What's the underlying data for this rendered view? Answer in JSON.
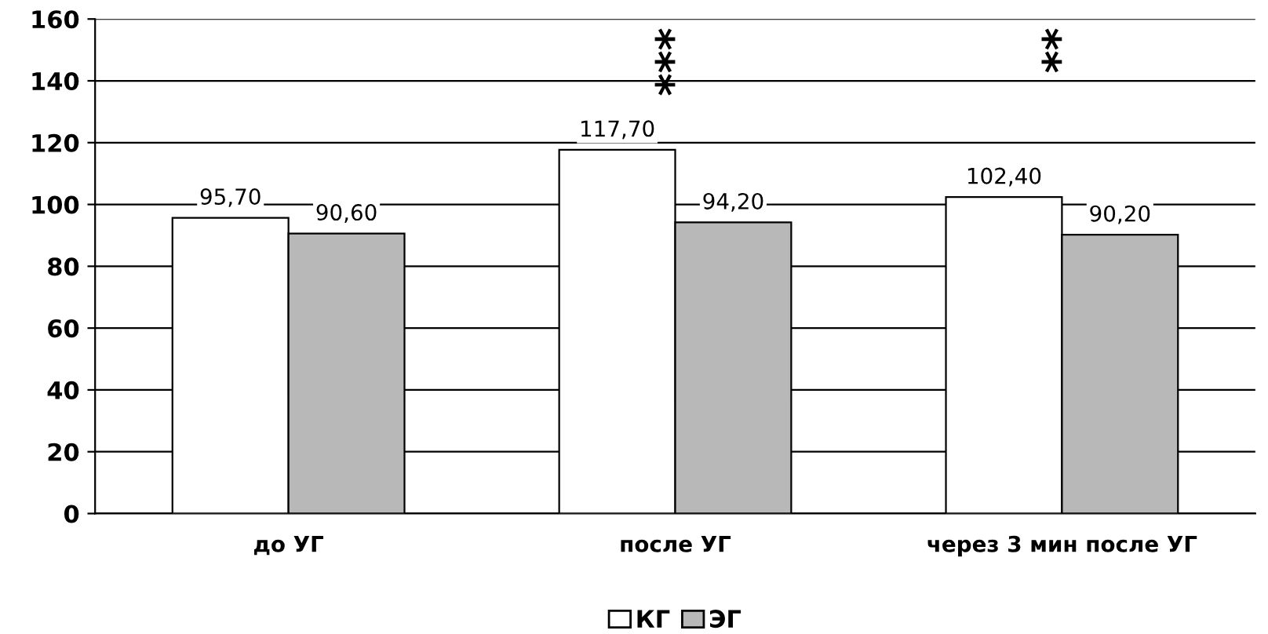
{
  "chart_data": {
    "type": "bar",
    "categories": [
      "до УГ",
      "после УГ",
      "через 3 мин после УГ"
    ],
    "series": [
      {
        "name": "КГ",
        "color": "#ffffff",
        "values": [
          95.7,
          117.7,
          102.4
        ],
        "value_labels": [
          "95,70",
          "117,70",
          "102,40"
        ]
      },
      {
        "name": "ЭГ",
        "color": "#b8b8b8",
        "values": [
          90.6,
          94.2,
          90.2
        ],
        "value_labels": [
          "90,60",
          "94,20",
          "90,20"
        ]
      }
    ],
    "ylim": [
      0,
      160
    ],
    "yticks": [
      0,
      20,
      40,
      60,
      80,
      100,
      120,
      140,
      160
    ],
    "grid": "y",
    "legend": "bottom",
    "annotations": [
      "***",
      "**"
    ]
  }
}
